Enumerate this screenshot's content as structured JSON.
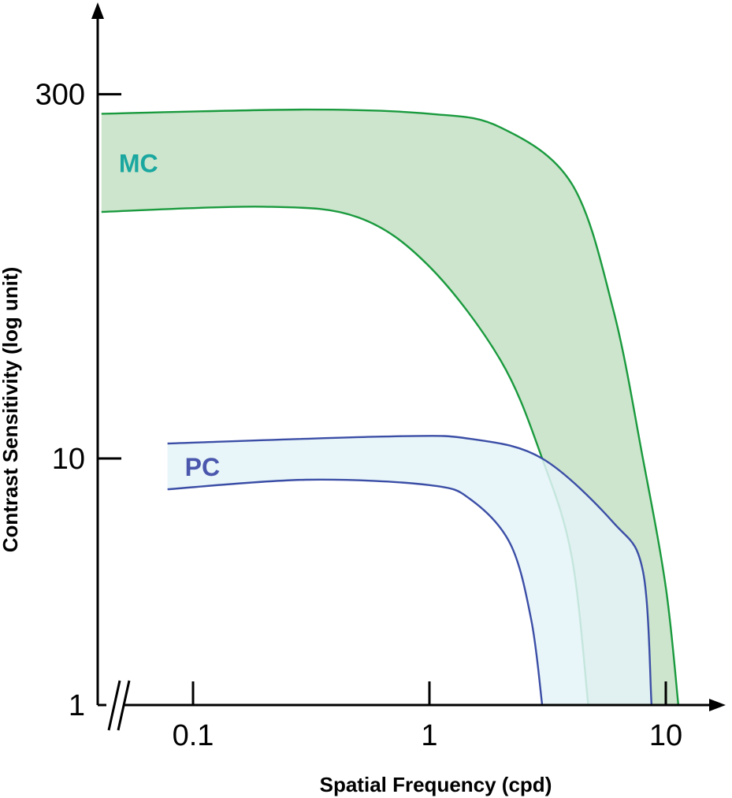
{
  "chart_data": {
    "type": "area",
    "xlabel": "Spatial Frequency (cpd)",
    "ylabel": "Contrast Sensitivity (log unit)",
    "x_scale": "log",
    "y_scale": "log",
    "xlim": [
      0.035,
      12
    ],
    "ylim": [
      1,
      900
    ],
    "x_ticks": [
      {
        "value": 0.1,
        "label": "0.1"
      },
      {
        "value": 1,
        "label": "1"
      },
      {
        "value": 10,
        "label": "10"
      }
    ],
    "y_ticks": [
      {
        "value": 1,
        "label": "1"
      },
      {
        "value": 10,
        "label": "10"
      },
      {
        "value": 300,
        "label": "300"
      }
    ],
    "axis_break": "x",
    "grid": false,
    "series": [
      {
        "name": "MC",
        "color": "#1a9a3e",
        "fill": "#cde5cc",
        "label_color": "#1aa7a0",
        "upper": [
          [
            0.041,
            250
          ],
          [
            0.3,
            260
          ],
          [
            1,
            250
          ],
          [
            2,
            220
          ],
          [
            4,
            130
          ],
          [
            6,
            40
          ],
          [
            8,
            10
          ],
          [
            10,
            3
          ],
          [
            11.3,
            1
          ]
        ],
        "lower": [
          [
            0.041,
            100
          ],
          [
            0.2,
            105
          ],
          [
            0.5,
            95
          ],
          [
            1,
            60
          ],
          [
            2,
            25
          ],
          [
            3,
            10
          ],
          [
            4,
            4
          ],
          [
            4.7,
            1
          ]
        ]
      },
      {
        "name": "PC",
        "color": "#3b4ea6",
        "fill": "#e4f3f8",
        "label_color": "#4a57ad",
        "upper": [
          [
            0.078,
            11.5
          ],
          [
            0.7,
            12.3
          ],
          [
            1.5,
            12
          ],
          [
            3,
            10
          ],
          [
            6,
            5.5
          ],
          [
            8,
            3.5
          ],
          [
            8.7,
            1
          ]
        ],
        "lower": [
          [
            0.078,
            7.5
          ],
          [
            0.3,
            8.2
          ],
          [
            1,
            7.8
          ],
          [
            1.5,
            6.8
          ],
          [
            2.2,
            4.5
          ],
          [
            2.7,
            2.2
          ],
          [
            3,
            1
          ]
        ]
      }
    ]
  }
}
